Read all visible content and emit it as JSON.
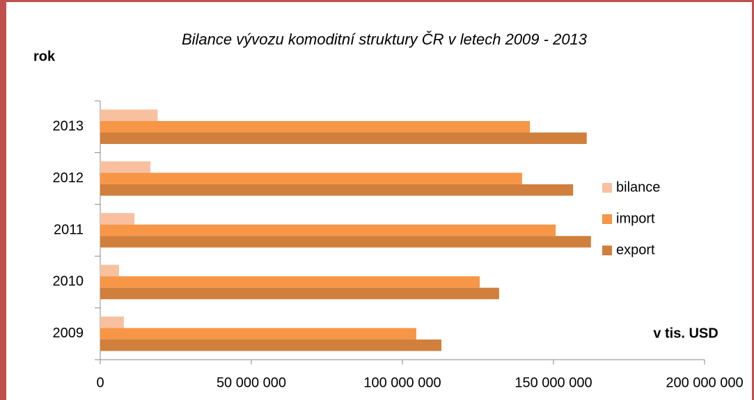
{
  "chart_data": {
    "type": "bar",
    "orientation": "horizontal",
    "title": "Bilance vývozu komoditní struktury ČR v letech 2009 - 2013",
    "y_label": "rok",
    "x_label": "v tis. USD",
    "categories": [
      "2009",
      "2010",
      "2011",
      "2012",
      "2013"
    ],
    "series": [
      {
        "name": "bilance",
        "color": "#f9c0a0",
        "values": [
          7800000,
          6200000,
          11300000,
          16600000,
          19000000
        ]
      },
      {
        "name": "import",
        "color": "#f79646",
        "values": [
          104600000,
          125600000,
          150700000,
          139600000,
          142200000
        ]
      },
      {
        "name": "export",
        "color": "#d07f3c",
        "values": [
          112900000,
          132000000,
          162400000,
          156500000,
          161000000
        ]
      }
    ],
    "xlim": [
      0,
      200000000
    ],
    "xticks": [
      0,
      {
        "value": 50000000,
        "label": "50 000 000"
      },
      {
        "value": 100000000,
        "label": "100 000 000"
      },
      {
        "value": 150000000,
        "label": "150 000 000"
      },
      {
        "value": 200000000,
        "label": "200 000 000"
      }
    ],
    "grid": false,
    "legend": "right"
  }
}
